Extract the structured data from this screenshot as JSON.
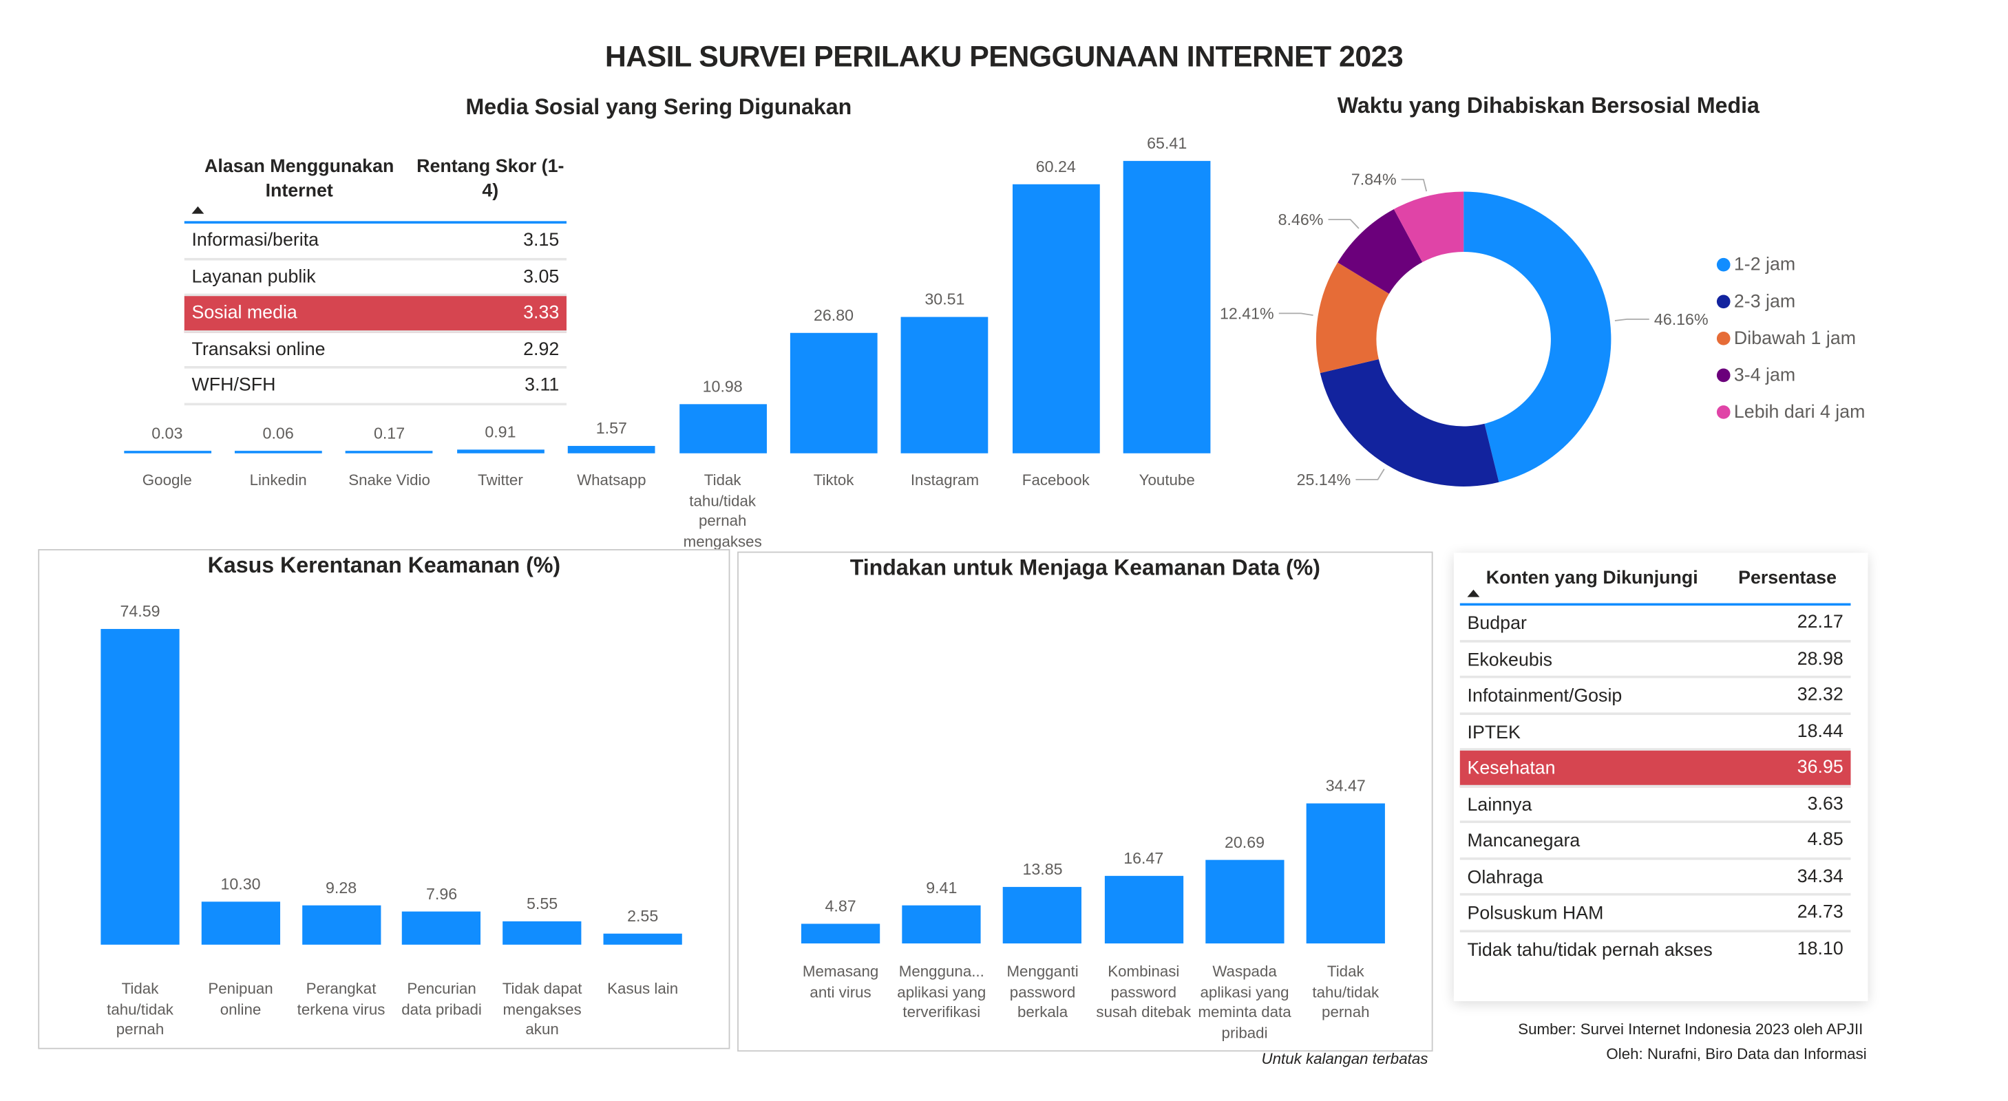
{
  "title": "HASIL SURVEI PERILAKU PENGGUNAAN INTERNET 2023",
  "reasons_table": {
    "headers": [
      "Alasan Menggunakan Internet",
      "Rentang Skor (1-4)"
    ],
    "sort_icon": "sort-ascending-triangle",
    "rows": [
      {
        "label": "Informasi/berita",
        "value": "3.15"
      },
      {
        "label": "Layanan publik",
        "value": "3.05"
      },
      {
        "label": "Sosial media",
        "value": "3.33",
        "highlight": true
      },
      {
        "label": "Transaksi online",
        "value": "2.92"
      },
      {
        "label": "WFH/SFH",
        "value": "3.11"
      }
    ],
    "highlight_color": "#D64550"
  },
  "content_table": {
    "headers": [
      "Konten yang Dikunjungi",
      "Persentase"
    ],
    "sort_icon": "sort-ascending-triangle",
    "rows": [
      {
        "label": "Budpar",
        "value": "22.17"
      },
      {
        "label": "Ekokeubis",
        "value": "28.98"
      },
      {
        "label": "Infotainment/Gosip",
        "value": "32.32"
      },
      {
        "label": "IPTEK",
        "value": "18.44"
      },
      {
        "label": "Kesehatan",
        "value": "36.95",
        "highlight": true
      },
      {
        "label": "Lainnya",
        "value": "3.63"
      },
      {
        "label": "Mancanegara",
        "value": "4.85"
      },
      {
        "label": "Olahraga",
        "value": "34.34"
      },
      {
        "label": "Polsuskum HAM",
        "value": "24.73"
      },
      {
        "label": "Tidak tahu/tidak pernah akses",
        "value": "18.10"
      }
    ],
    "highlight_color": "#D64550"
  },
  "chart_data": [
    {
      "type": "bar",
      "title": "Media Sosial yang Sering Digunakan",
      "categories": [
        "Google",
        "Linkedin",
        "Snake Vidio",
        "Twitter",
        "Whatsapp",
        "Tidak tahu/tidak pernah mengakses",
        "Tiktok",
        "Instagram",
        "Facebook",
        "Youtube"
      ],
      "values": [
        0.03,
        0.06,
        0.17,
        0.91,
        1.57,
        10.98,
        26.8,
        30.51,
        60.24,
        65.41
      ],
      "labels": [
        "0.03",
        "0.06",
        "0.17",
        "0.91",
        "1.57",
        "10.98",
        "26.80",
        "30.51",
        "60.24",
        "65.41"
      ],
      "color": "#118DFF",
      "grid": false
    },
    {
      "type": "pie",
      "donut": true,
      "title": "Waktu yang Dihabiskan Bersosial Media",
      "categories": [
        "1-2 jam",
        "2-3 jam",
        "Dibawah 1 jam",
        "3-4 jam",
        "Lebih dari 4 jam"
      ],
      "values": [
        46.16,
        25.14,
        12.41,
        8.46,
        7.84
      ],
      "labels": [
        "46.16%",
        "25.14%",
        "12.41%",
        "8.46%",
        "7.84%"
      ],
      "colors": [
        "#118DFF",
        "#12239E",
        "#E66C37",
        "#6B007B",
        "#E044A7"
      ],
      "legend": "right"
    },
    {
      "type": "bar",
      "title": "Kasus Kerentanan Keamanan (%)",
      "categories": [
        "Tidak tahu/tidak pernah",
        "Penipuan online",
        "Perangkat terkena virus",
        "Pencurian data pribadi",
        "Tidak dapat mengakses akun",
        "Kasus lain"
      ],
      "values": [
        74.59,
        10.3,
        9.28,
        7.96,
        5.55,
        2.55
      ],
      "labels": [
        "74.59",
        "10.30",
        "9.28",
        "7.96",
        "5.55",
        "2.55"
      ],
      "color": "#118DFF",
      "grid": false
    },
    {
      "type": "bar",
      "title": "Tindakan untuk Menjaga Keamanan Data (%)",
      "categories": [
        "Memasang anti virus",
        "Mengguna... aplikasi yang terverifikasi",
        "Mengganti password berkala",
        "Kombinasi password susah ditebak",
        "Waspada aplikasi yang meminta data pribadi",
        "Tidak tahu/tidak pernah"
      ],
      "values": [
        4.87,
        9.41,
        13.85,
        16.47,
        20.69,
        34.47
      ],
      "labels": [
        "4.87",
        "9.41",
        "13.85",
        "16.47",
        "20.69",
        "34.47"
      ],
      "color": "#118DFF",
      "grid": false
    }
  ],
  "footer": {
    "restricted": "Untuk kalangan terbatas",
    "source": "Sumber: Survei Internet Indonesia 2023 oleh APJII",
    "author": "Oleh: Nurafni, Biro Data dan Informasi"
  }
}
